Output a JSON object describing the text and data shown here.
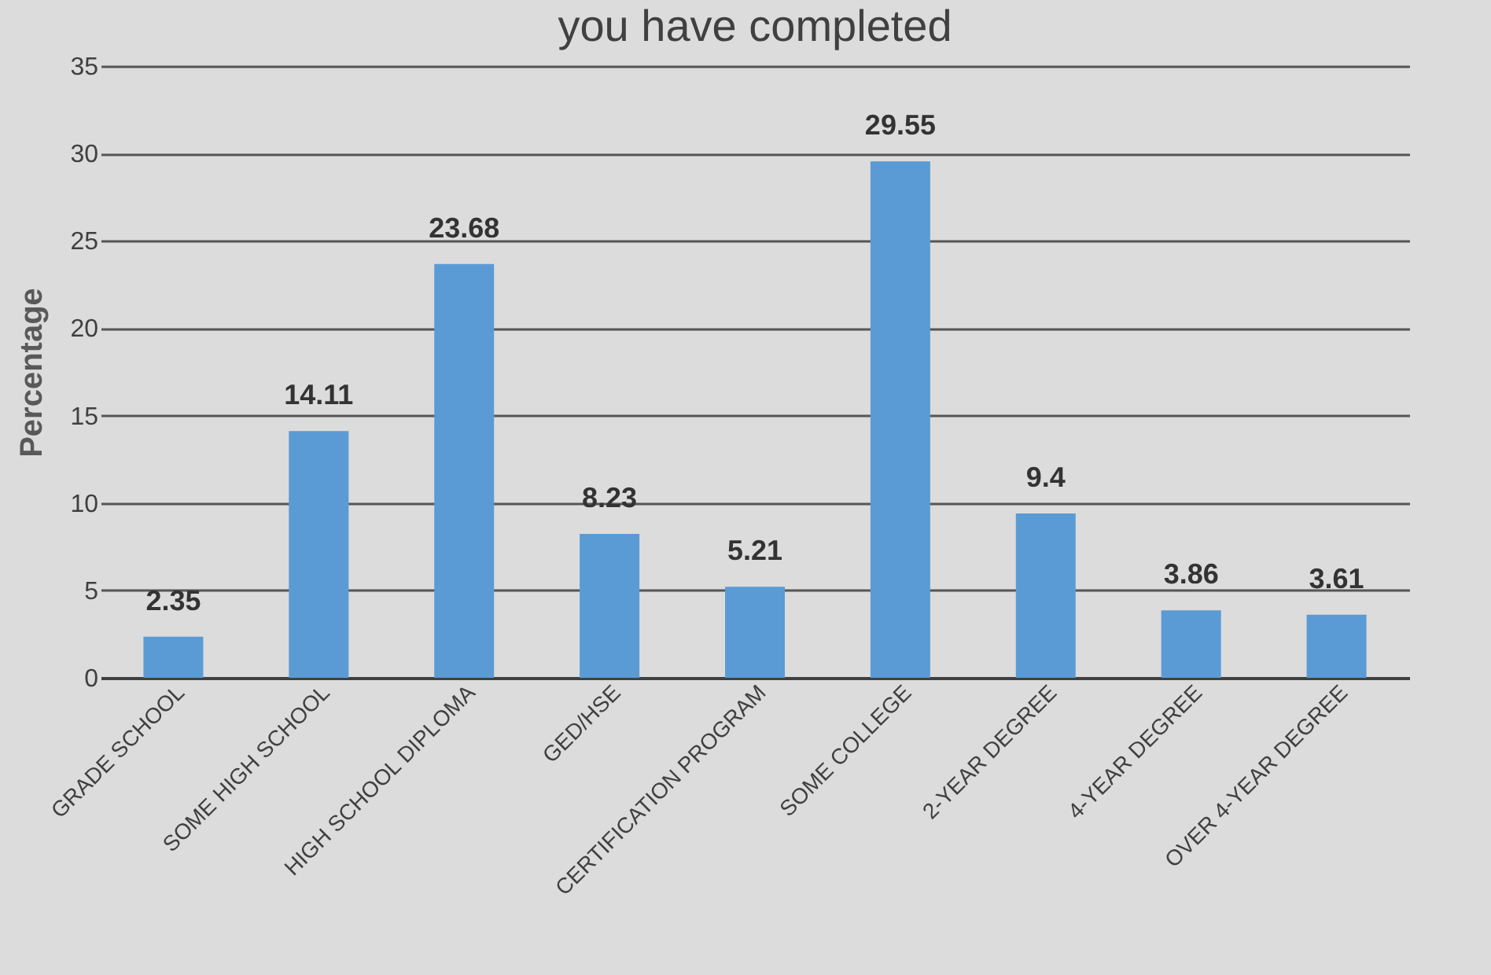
{
  "chart_data": {
    "type": "bar",
    "title": "you have completed",
    "ylabel": "Percentage",
    "categories": [
      "GRADE SCHOOL",
      "SOME HIGH SCHOOL",
      "HIGH SCHOOL DIPLOMA",
      "GED/HSE",
      "CERTIFICATION PROGRAM",
      "SOME COLLEGE",
      "2-YEAR DEGREE",
      "4-YEAR DEGREE",
      "OVER 4-YEAR DEGREE"
    ],
    "values": [
      2.35,
      14.11,
      23.68,
      8.23,
      5.21,
      29.55,
      9.4,
      3.86,
      3.61
    ],
    "color": "#5b9bd5",
    "ylim": [
      0,
      35
    ],
    "yticks": [
      0,
      5,
      10,
      15,
      20,
      25,
      30,
      35
    ],
    "grid": "y",
    "data_labels": true
  }
}
